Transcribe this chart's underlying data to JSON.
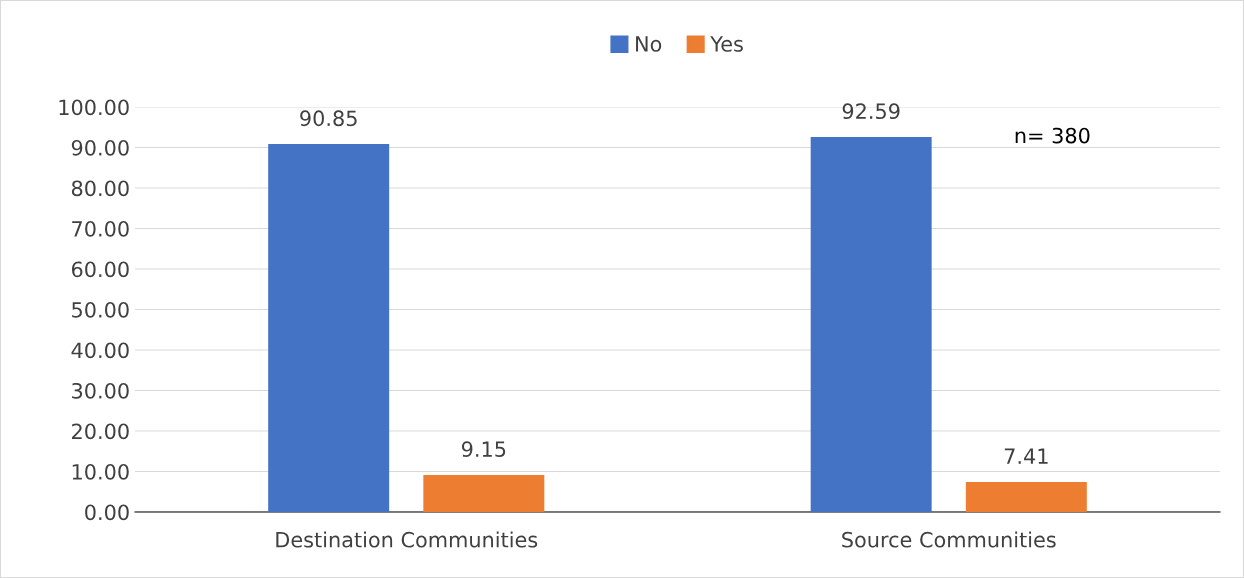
{
  "chart_data": {
    "type": "bar",
    "categories": [
      "Destination Communities",
      "Source Communities"
    ],
    "series": [
      {
        "name": "No",
        "color": "#4472c4",
        "values": [
          90.85,
          92.59
        ]
      },
      {
        "name": "Yes",
        "color": "#ed7d31",
        "values": [
          9.15,
          7.41
        ]
      }
    ],
    "ylim": [
      0,
      100
    ],
    "yticks": [
      {
        "value": 0,
        "label": "0.00"
      },
      {
        "value": 10,
        "label": "10.00"
      },
      {
        "value": 20,
        "label": "20.00"
      },
      {
        "value": 30,
        "label": "30.00"
      },
      {
        "value": 40,
        "label": "40.00"
      },
      {
        "value": 50,
        "label": "50.00"
      },
      {
        "value": 60,
        "label": "60.00"
      },
      {
        "value": 70,
        "label": "70.00"
      },
      {
        "value": 80,
        "label": "80.00"
      },
      {
        "value": 90,
        "label": "90.00"
      },
      {
        "value": 100,
        "label": "100.00"
      }
    ],
    "grid": "y",
    "legend": "top",
    "data_labels": true,
    "annotations": [
      "n= 380"
    ]
  }
}
